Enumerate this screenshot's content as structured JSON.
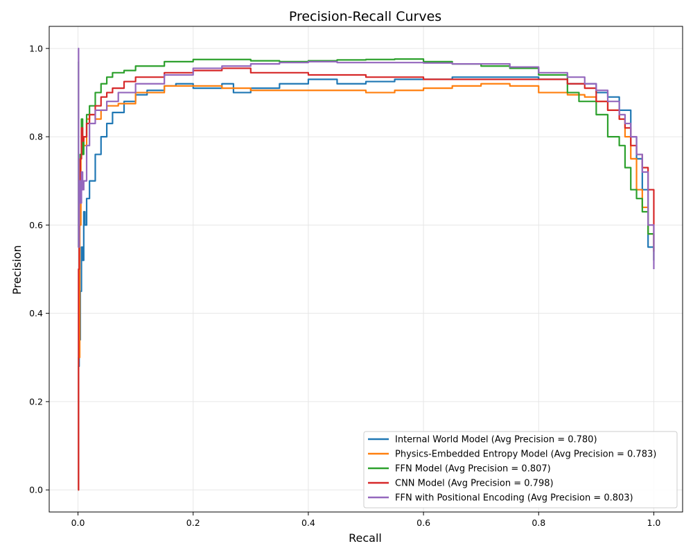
{
  "chart_data": {
    "type": "line",
    "title": "Precision-Recall Curves",
    "xlabel": "Recall",
    "ylabel": "Precision",
    "xlim": [
      -0.05,
      1.05
    ],
    "ylim": [
      -0.05,
      1.05
    ],
    "xticks": [
      0.0,
      0.2,
      0.4,
      0.6,
      0.8,
      1.0
    ],
    "xtick_labels": [
      "0.0",
      "0.2",
      "0.4",
      "0.6",
      "0.8",
      "1.0"
    ],
    "yticks": [
      0.0,
      0.2,
      0.4,
      0.6,
      0.8,
      1.0
    ],
    "ytick_labels": [
      "0.0",
      "0.2",
      "0.4",
      "0.6",
      "0.8",
      "1.0"
    ],
    "grid": true,
    "legend_position": "lower-right",
    "series": [
      {
        "name": "Internal World Model (Avg Precision = 0.780)",
        "color": "#1f77b4",
        "x": [
          0.0,
          0.001,
          0.002,
          0.004,
          0.006,
          0.008,
          0.01,
          0.012,
          0.015,
          0.02,
          0.03,
          0.04,
          0.05,
          0.06,
          0.08,
          0.1,
          0.12,
          0.15,
          0.17,
          0.2,
          0.25,
          0.27,
          0.3,
          0.35,
          0.4,
          0.45,
          0.5,
          0.55,
          0.6,
          0.65,
          0.7,
          0.75,
          0.8,
          0.85,
          0.9,
          0.92,
          0.94,
          0.96,
          0.97,
          0.98,
          0.99,
          1.0
        ],
        "y": [
          0.0,
          0.28,
          0.34,
          0.45,
          0.55,
          0.52,
          0.63,
          0.6,
          0.66,
          0.7,
          0.76,
          0.8,
          0.83,
          0.855,
          0.88,
          0.895,
          0.905,
          0.915,
          0.92,
          0.91,
          0.92,
          0.9,
          0.91,
          0.92,
          0.93,
          0.92,
          0.925,
          0.93,
          0.93,
          0.935,
          0.935,
          0.935,
          0.93,
          0.92,
          0.9,
          0.89,
          0.86,
          0.8,
          0.75,
          0.68,
          0.55,
          0.52
        ]
      },
      {
        "name": "Physics-Embedded Entropy Model (Avg Precision = 0.783)",
        "color": "#ff7f0e",
        "x": [
          0.0,
          0.001,
          0.003,
          0.005,
          0.008,
          0.01,
          0.015,
          0.02,
          0.03,
          0.04,
          0.05,
          0.07,
          0.1,
          0.15,
          0.2,
          0.25,
          0.3,
          0.35,
          0.4,
          0.45,
          0.5,
          0.55,
          0.6,
          0.65,
          0.7,
          0.75,
          0.8,
          0.85,
          0.88,
          0.9,
          0.92,
          0.94,
          0.95,
          0.96,
          0.97,
          0.98,
          0.99,
          1.0
        ],
        "y": [
          0.0,
          0.3,
          0.6,
          0.76,
          0.8,
          0.78,
          0.84,
          0.85,
          0.84,
          0.86,
          0.87,
          0.875,
          0.9,
          0.915,
          0.915,
          0.91,
          0.905,
          0.905,
          0.905,
          0.905,
          0.9,
          0.905,
          0.91,
          0.915,
          0.92,
          0.915,
          0.9,
          0.895,
          0.89,
          0.88,
          0.86,
          0.84,
          0.8,
          0.75,
          0.68,
          0.64,
          0.58,
          0.54
        ]
      },
      {
        "name": "FFN Model (Avg Precision = 0.807)",
        "color": "#2ca02c",
        "x": [
          0.0,
          0.001,
          0.002,
          0.004,
          0.006,
          0.008,
          0.01,
          0.015,
          0.02,
          0.03,
          0.04,
          0.05,
          0.06,
          0.08,
          0.1,
          0.15,
          0.2,
          0.25,
          0.3,
          0.35,
          0.4,
          0.45,
          0.5,
          0.55,
          0.6,
          0.65,
          0.7,
          0.75,
          0.8,
          0.85,
          0.87,
          0.9,
          0.92,
          0.94,
          0.95,
          0.96,
          0.97,
          0.98,
          0.99,
          1.0
        ],
        "y": [
          0.97,
          0.55,
          0.7,
          0.76,
          0.84,
          0.76,
          0.8,
          0.85,
          0.87,
          0.9,
          0.92,
          0.935,
          0.945,
          0.95,
          0.96,
          0.97,
          0.975,
          0.975,
          0.972,
          0.97,
          0.972,
          0.974,
          0.975,
          0.976,
          0.97,
          0.965,
          0.96,
          0.955,
          0.94,
          0.9,
          0.88,
          0.85,
          0.8,
          0.78,
          0.73,
          0.68,
          0.66,
          0.63,
          0.58,
          0.52
        ]
      },
      {
        "name": "CNN Model (Avg Precision = 0.798)",
        "color": "#d62728",
        "x": [
          0.0,
          0.001,
          0.002,
          0.004,
          0.006,
          0.008,
          0.01,
          0.015,
          0.02,
          0.03,
          0.04,
          0.05,
          0.06,
          0.08,
          0.1,
          0.15,
          0.2,
          0.25,
          0.3,
          0.35,
          0.4,
          0.45,
          0.5,
          0.55,
          0.6,
          0.65,
          0.7,
          0.75,
          0.8,
          0.85,
          0.88,
          0.9,
          0.92,
          0.94,
          0.95,
          0.96,
          0.97,
          0.98,
          0.99,
          1.0
        ],
        "y": [
          0.0,
          0.5,
          0.68,
          0.75,
          0.82,
          0.79,
          0.8,
          0.83,
          0.85,
          0.87,
          0.89,
          0.9,
          0.91,
          0.925,
          0.935,
          0.945,
          0.95,
          0.955,
          0.945,
          0.945,
          0.94,
          0.94,
          0.935,
          0.935,
          0.93,
          0.93,
          0.93,
          0.93,
          0.93,
          0.92,
          0.91,
          0.88,
          0.86,
          0.84,
          0.82,
          0.78,
          0.76,
          0.73,
          0.68,
          0.54
        ]
      },
      {
        "name": "FFN with Positional Encoding (Avg Precision = 0.803)",
        "color": "#9467bd",
        "x": [
          0.0,
          0.001,
          0.002,
          0.004,
          0.006,
          0.008,
          0.01,
          0.015,
          0.02,
          0.03,
          0.05,
          0.07,
          0.1,
          0.15,
          0.2,
          0.25,
          0.3,
          0.35,
          0.4,
          0.45,
          0.5,
          0.55,
          0.6,
          0.65,
          0.7,
          0.75,
          0.8,
          0.85,
          0.88,
          0.9,
          0.92,
          0.94,
          0.95,
          0.96,
          0.97,
          0.98,
          0.99,
          1.0
        ],
        "y": [
          1.0,
          0.55,
          0.7,
          0.65,
          0.72,
          0.68,
          0.7,
          0.78,
          0.83,
          0.86,
          0.88,
          0.9,
          0.92,
          0.94,
          0.955,
          0.96,
          0.965,
          0.968,
          0.97,
          0.968,
          0.968,
          0.968,
          0.967,
          0.965,
          0.965,
          0.958,
          0.945,
          0.935,
          0.92,
          0.905,
          0.88,
          0.85,
          0.83,
          0.8,
          0.76,
          0.72,
          0.6,
          0.5
        ]
      }
    ]
  }
}
